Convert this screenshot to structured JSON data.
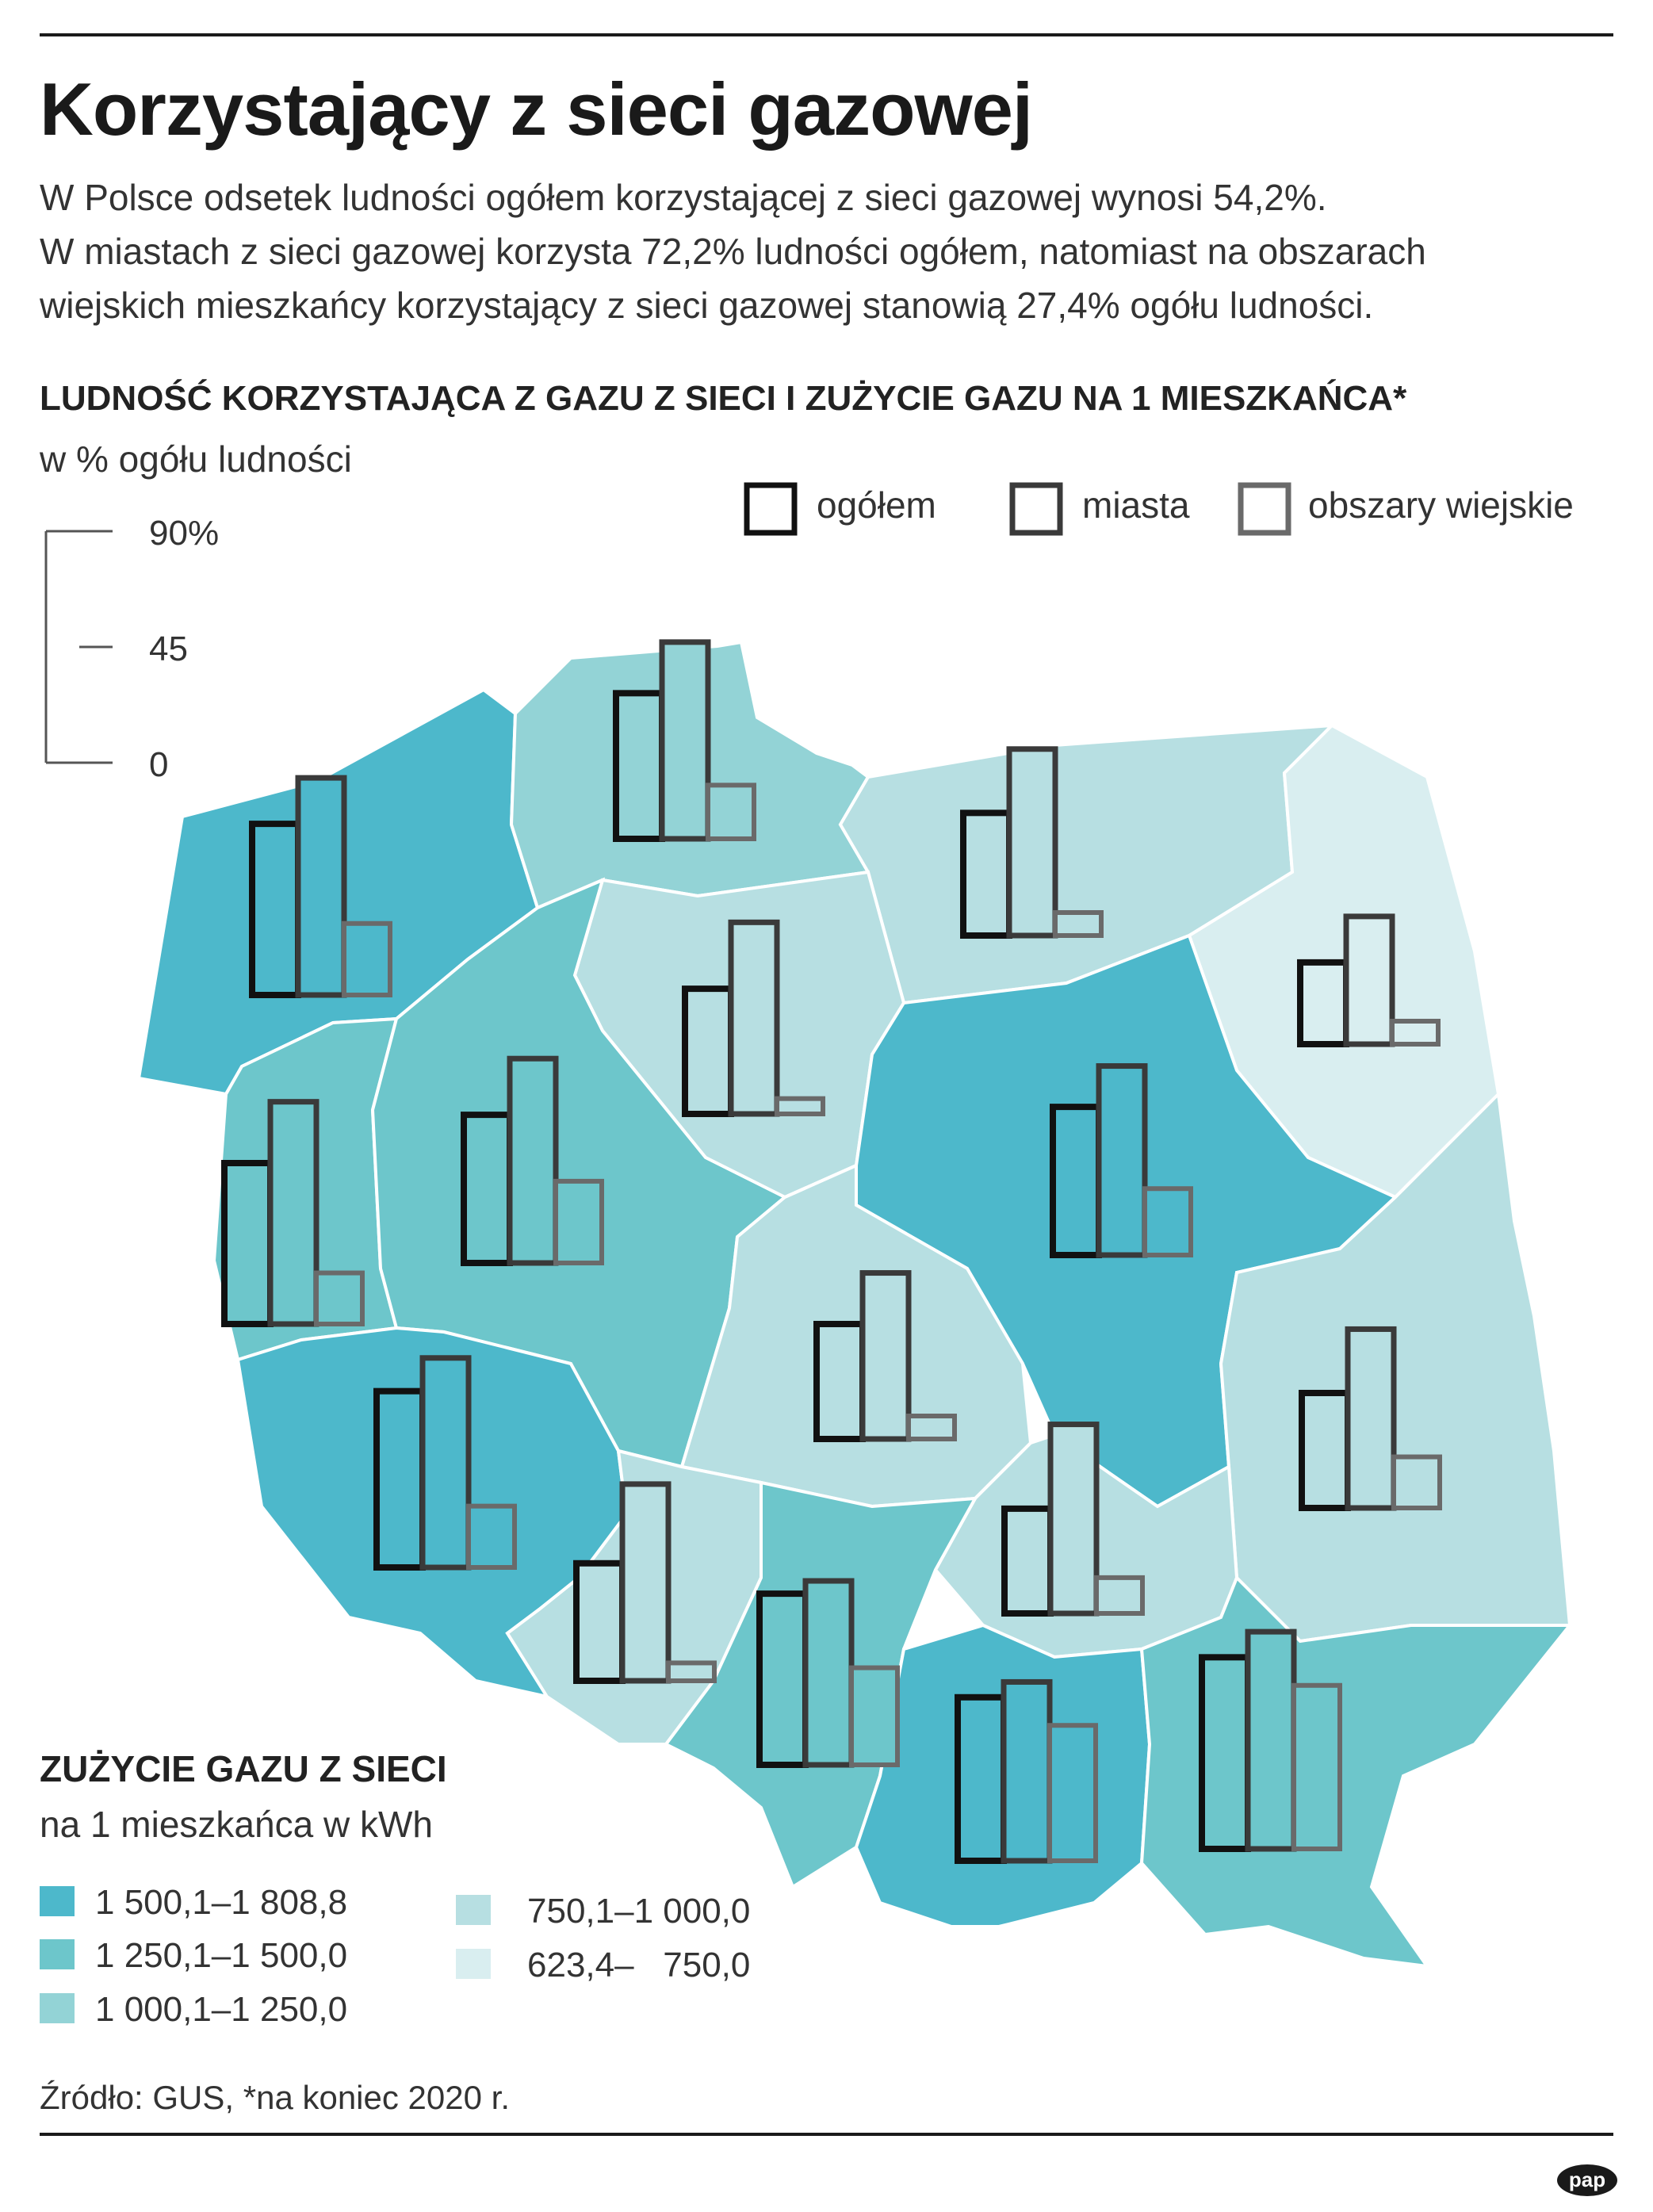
{
  "title": "Korzystający z sieci gazowej",
  "intro": [
    "W Polsce odsetek ludności ogółem korzystającej z sieci gazowej wynosi 54,2%.",
    "W miastach z sieci gazowej korzysta 72,2% ludności ogółem, natomiast na obszarach",
    "wiejskich mieszkańcy korzystający z sieci gazowej stanowią 27,4% ogółu ludności."
  ],
  "chart_heading": "LUDNOŚĆ KORZYSTAJĄCA Z GAZU Z SIECI I ZUŻYCIE GAZU NA 1 MIESZKAŃCA*",
  "chart_unit": "w % ogółu ludności",
  "legend": [
    {
      "label": "ogółem",
      "color": "#111111"
    },
    {
      "label": "miasta",
      "color": "#3a3a3a"
    },
    {
      "label": "obszary wiejskie",
      "color": "#6a6a6a"
    }
  ],
  "scale": {
    "max_label": "90%",
    "mid_label": "45",
    "min_label": "0",
    "max": 90
  },
  "consumption_heading": "ZUŻYCIE GAZU Z SIECI",
  "consumption_unit": "na 1 mieszkańca w kWh",
  "classes": [
    {
      "label": "1 500,1–1 808,8",
      "color": "#4db8cb"
    },
    {
      "label": "1 250,1–1 500,0",
      "color": "#6dc6cb"
    },
    {
      "label": "1 000,1–1 250,0",
      "color": "#93d3d6"
    },
    {
      "label": "750,1–1 000,0",
      "color": "#b7dfe2"
    },
    {
      "label": "623,4–   750,0",
      "color": "#d9eef0"
    }
  ],
  "source": "Źródło: GUS, *na koniec 2020 r.",
  "logo_text": "pap",
  "regions": [
    {
      "name": "zachodniopomorskie",
      "class": 0,
      "values": [
        67,
        85,
        28
      ]
    },
    {
      "name": "pomorskie",
      "class": 2,
      "values": [
        57,
        77,
        21
      ]
    },
    {
      "name": "warmińsko-mazurskie",
      "class": 3,
      "values": [
        48,
        73,
        9
      ]
    },
    {
      "name": "podlaskie",
      "class": 4,
      "values": [
        32,
        50,
        9
      ]
    },
    {
      "name": "lubuskie",
      "class": 1,
      "values": [
        63,
        87,
        20
      ]
    },
    {
      "name": "kujawsko-pomorskie",
      "class": 3,
      "values": [
        49,
        75,
        6
      ]
    },
    {
      "name": "wielkopolskie",
      "class": 1,
      "values": [
        58,
        80,
        32
      ]
    },
    {
      "name": "mazowieckie",
      "class": 0,
      "values": [
        58,
        74,
        26
      ]
    },
    {
      "name": "łódzkie",
      "class": 3,
      "values": [
        45,
        65,
        9
      ]
    },
    {
      "name": "lubelskie",
      "class": 3,
      "values": [
        45,
        70,
        20
      ]
    },
    {
      "name": "dolnośląskie",
      "class": 0,
      "values": [
        69,
        82,
        24
      ]
    },
    {
      "name": "opolskie",
      "class": 3,
      "values": [
        46,
        77,
        7
      ]
    },
    {
      "name": "świętokrzyskie",
      "class": 3,
      "values": [
        41,
        74,
        14
      ]
    },
    {
      "name": "śląskie",
      "class": 1,
      "values": [
        67,
        72,
        38
      ]
    },
    {
      "name": "małopolskie",
      "class": 0,
      "values": [
        64,
        70,
        53
      ]
    },
    {
      "name": "podkarpackie",
      "class": 1,
      "values": [
        75,
        85,
        64
      ]
    }
  ]
}
